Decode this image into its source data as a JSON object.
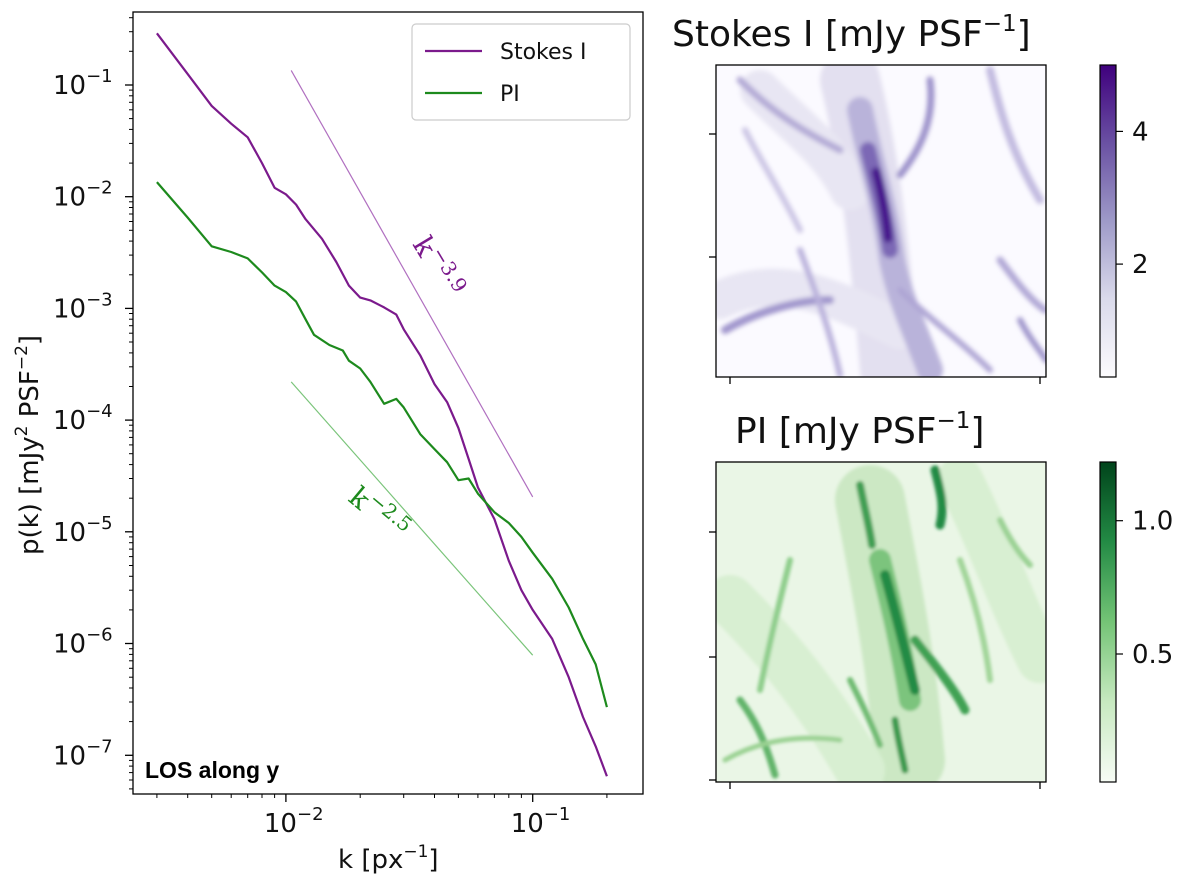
{
  "colors": {
    "stokes": "#7b1a8c",
    "pi": "#1d8a1d",
    "purple_dark": "#3f007d",
    "green_dark": "#00441b"
  },
  "chart_data": [
    {
      "type": "line",
      "xscale": "log",
      "yscale": "log",
      "xlabel": "k [px",
      "xlabel_sup": "−1",
      "xlabel_end": "]",
      "ylabel": "p(k) [mJy",
      "ylabel_sup1": "2",
      "ylabel_mid": " PSF",
      "ylabel_sup2": "−2",
      "ylabel_end": "]",
      "xlim": [
        0.0024,
        0.28
      ],
      "ylim": [
        4.5e-08,
        0.45
      ],
      "x_ticks": [
        {
          "value": 0.01,
          "base": "10",
          "exp": "−2"
        },
        {
          "value": 0.1,
          "base": "10",
          "exp": "−1"
        }
      ],
      "y_ticks": [
        {
          "value": 0.1,
          "base": "10",
          "exp": "−1"
        },
        {
          "value": 0.01,
          "base": "10",
          "exp": "−2"
        },
        {
          "value": 0.001,
          "base": "10",
          "exp": "−3"
        },
        {
          "value": 0.0001,
          "base": "10",
          "exp": "−4"
        },
        {
          "value": 1e-05,
          "base": "10",
          "exp": "−5"
        },
        {
          "value": 1e-06,
          "base": "10",
          "exp": "−6"
        },
        {
          "value": 1e-07,
          "base": "10",
          "exp": "−7"
        }
      ],
      "legend": {
        "placement": "top-right",
        "entries": [
          "Stokes I",
          "PI"
        ]
      },
      "inner_label": "LOS along y",
      "series": [
        {
          "name": "Stokes I",
          "color": "#7b1a8c",
          "points": [
            [
              0.003,
              0.29
            ],
            [
              0.004,
              0.125
            ],
            [
              0.005,
              0.065
            ],
            [
              0.006,
              0.045
            ],
            [
              0.007,
              0.034
            ],
            [
              0.008,
              0.02
            ],
            [
              0.009,
              0.012
            ],
            [
              0.01,
              0.0105
            ],
            [
              0.011,
              0.0085
            ],
            [
              0.012,
              0.0063
            ],
            [
              0.014,
              0.0042
            ],
            [
              0.016,
              0.0026
            ],
            [
              0.018,
              0.0016
            ],
            [
              0.02,
              0.00125
            ],
            [
              0.022,
              0.00118
            ],
            [
              0.025,
              0.00102
            ],
            [
              0.028,
              0.00088
            ],
            [
              0.03,
              0.00065
            ],
            [
              0.035,
              0.00038
            ],
            [
              0.04,
              0.00021
            ],
            [
              0.045,
              0.000145
            ],
            [
              0.05,
              8.5e-05
            ],
            [
              0.055,
              4.5e-05
            ],
            [
              0.06,
              2.5e-05
            ],
            [
              0.07,
              1.3e-05
            ],
            [
              0.08,
              5.5e-06
            ],
            [
              0.09,
              3e-06
            ],
            [
              0.1,
              2e-06
            ],
            [
              0.12,
              1.1e-06
            ],
            [
              0.14,
              5e-07
            ],
            [
              0.16,
              2.2e-07
            ],
            [
              0.18,
              1.2e-07
            ],
            [
              0.2,
              6.5e-08
            ]
          ]
        },
        {
          "name": "PI",
          "color": "#1d8a1d",
          "points": [
            [
              0.003,
              0.0135
            ],
            [
              0.004,
              0.0065
            ],
            [
              0.005,
              0.0036
            ],
            [
              0.006,
              0.0032
            ],
            [
              0.007,
              0.0028
            ],
            [
              0.008,
              0.0021
            ],
            [
              0.009,
              0.0016
            ],
            [
              0.01,
              0.0014
            ],
            [
              0.011,
              0.00115
            ],
            [
              0.012,
              0.0008
            ],
            [
              0.013,
              0.00058
            ],
            [
              0.015,
              0.00047
            ],
            [
              0.017,
              0.00042
            ],
            [
              0.018,
              0.00034
            ],
            [
              0.02,
              0.00029
            ],
            [
              0.022,
              0.00022
            ],
            [
              0.025,
              0.00014
            ],
            [
              0.028,
              0.000155
            ],
            [
              0.03,
              0.00013
            ],
            [
              0.035,
              7.5e-05
            ],
            [
              0.04,
              5.5e-05
            ],
            [
              0.045,
              4.2e-05
            ],
            [
              0.05,
              2.9e-05
            ],
            [
              0.055,
              3e-05
            ],
            [
              0.06,
              2.2e-05
            ],
            [
              0.07,
              1.5e-05
            ],
            [
              0.08,
              1.2e-05
            ],
            [
              0.09,
              9e-06
            ],
            [
              0.1,
              6.5e-06
            ],
            [
              0.12,
              3.8e-06
            ],
            [
              0.14,
              2.1e-06
            ],
            [
              0.16,
              1.1e-06
            ],
            [
              0.18,
              6.5e-07
            ],
            [
              0.2,
              2.7e-07
            ]
          ]
        }
      ],
      "reference_lines": [
        {
          "label_base": "k",
          "label_exp": "−3.9",
          "slope": -3.9,
          "x": [
            0.0105,
            0.1
          ],
          "y_start": 0.135,
          "color": "#b070c0",
          "label_color": "#7b1a8c"
        },
        {
          "label_base": "k",
          "label_exp": "−2.5",
          "slope": -2.5,
          "x": [
            0.0105,
            0.1
          ],
          "y_start": 0.00022,
          "color": "#7ac47a",
          "label_color": "#1d8a1d"
        }
      ]
    },
    {
      "type": "heatmap",
      "title": "Stokes I [mJy PSF",
      "title_sup": "−1",
      "title_end": "]",
      "colormap": "Purples",
      "colorbar": {
        "min": 0.3,
        "max": 5.0,
        "ticks": [
          {
            "value": 4,
            "label": "4"
          },
          {
            "value": 2,
            "label": "2"
          }
        ]
      }
    },
    {
      "type": "heatmap",
      "title": "PI [mJy PSF",
      "title_sup": "−1",
      "title_end": "]",
      "colormap": "Greens",
      "colorbar": {
        "min": 0.02,
        "max": 1.22,
        "ticks": [
          {
            "value": 1.0,
            "label": "1.0"
          },
          {
            "value": 0.5,
            "label": "0.5"
          }
        ]
      }
    }
  ]
}
